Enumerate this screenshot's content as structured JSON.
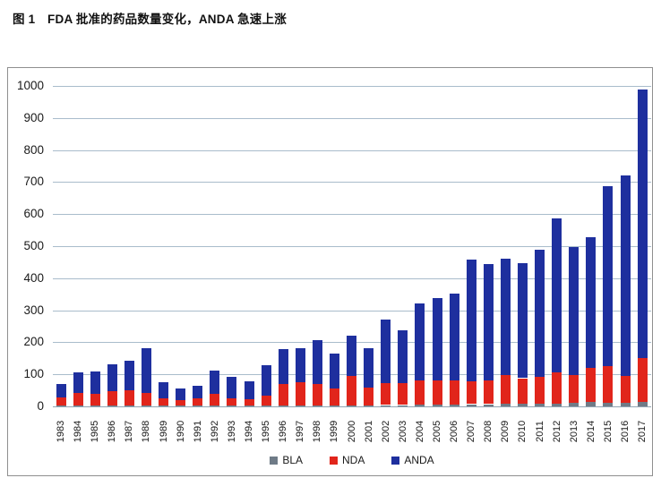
{
  "figure": {
    "title": "图 1　FDA 批准的药品数量变化，ANDA 急速上涨"
  },
  "chart_data": {
    "type": "bar",
    "stacked": true,
    "title": "图 1　FDA 批准的药品数量变化，ANDA 急速上涨",
    "xlabel": "",
    "ylabel": "",
    "ylim": [
      0,
      1000
    ],
    "ytick_interval": 100,
    "grid": true,
    "legend_position": "bottom",
    "categories": [
      "1983",
      "1984",
      "1985",
      "1986",
      "1987",
      "1988",
      "1989",
      "1990",
      "1991",
      "1992",
      "1993",
      "1994",
      "1995",
      "1996",
      "1997",
      "1998",
      "1999",
      "2000",
      "2001",
      "2002",
      "2003",
      "2004",
      "2005",
      "2006",
      "2007",
      "2008",
      "2009",
      "2010",
      "2011",
      "2012",
      "2013",
      "2014",
      "2015",
      "2016",
      "2017"
    ],
    "series": [
      {
        "name": "BLA",
        "color": "#6f7b87",
        "values": [
          2,
          2,
          2,
          3,
          3,
          3,
          2,
          2,
          2,
          2,
          2,
          2,
          2,
          3,
          3,
          3,
          3,
          3,
          3,
          4,
          4,
          5,
          5,
          6,
          7,
          7,
          9,
          8,
          8,
          8,
          12,
          15,
          12,
          10,
          13
        ]
      },
      {
        "name": "NDA",
        "color": "#e1251b",
        "values": [
          25,
          40,
          37,
          44,
          48,
          38,
          23,
          18,
          22,
          38,
          23,
          20,
          32,
          68,
          72,
          67,
          53,
          92,
          55,
          68,
          68,
          75,
          75,
          76,
          72,
          75,
          88,
          80,
          84,
          97,
          86,
          105,
          113,
          85,
          137
        ]
      },
      {
        "name": "ANDA",
        "color": "#1e2f9e",
        "values": [
          43,
          63,
          69,
          85,
          91,
          141,
          50,
          35,
          39,
          72,
          68,
          56,
          94,
          109,
          107,
          138,
          109,
          127,
          124,
          198,
          166,
          242,
          258,
          270,
          379,
          361,
          363,
          360,
          396,
          483,
          400,
          408,
          563,
          625,
          838
        ]
      }
    ]
  },
  "colors": {
    "gridline": "#a9bccb",
    "baseline": "#93a5b2",
    "frame_border": "#8f8f8f",
    "text": "#1a1a1a",
    "background": "#ffffff"
  }
}
